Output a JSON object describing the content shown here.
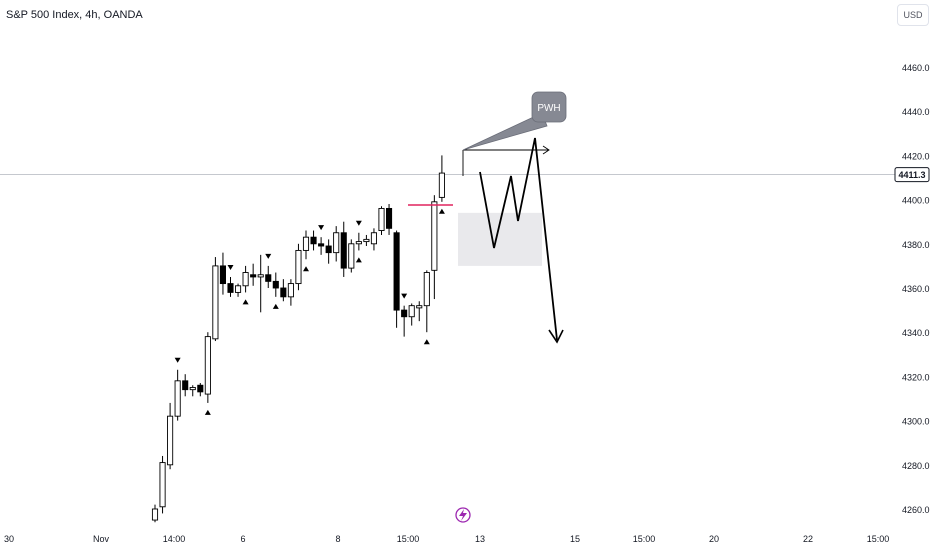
{
  "header": {
    "title": "S&P 500 Index, 4h, OANDA",
    "currency_button": "USD"
  },
  "price_tag": "4411.3",
  "annotation": {
    "label": "PWH"
  },
  "colors": {
    "bull": "#ffffff",
    "bear": "#000000",
    "outline": "#000000",
    "zone": "#e9e9ec",
    "pwh_line": "#e0245e",
    "axis_text": "#131722",
    "lightning": "#9c27b0"
  },
  "chart_data": {
    "type": "candlestick",
    "title": "S&P 500 Index, 4h, OANDA",
    "ylim": [
      4255,
      4480
    ],
    "y_ticks": [
      4260,
      4280,
      4300,
      4320,
      4340,
      4360,
      4380,
      4400,
      4420,
      4440,
      4460
    ],
    "y_tick_labels": [
      "4260.0",
      "4280.0",
      "4300.0",
      "4320.0",
      "4340.0",
      "4360.0",
      "4380.0",
      "4400.0",
      "4420.0",
      "4440.0",
      "4460.0"
    ],
    "x_tick_labels": [
      "30",
      "Nov",
      "14:00",
      "6",
      "8",
      "15:00",
      "13",
      "15",
      "15:00",
      "20",
      "22",
      "15:00"
    ],
    "last_price": 4411.3,
    "candles": [
      {
        "o": 4255,
        "h": 4262,
        "l": 4254,
        "c": 4260
      },
      {
        "o": 4261,
        "h": 4284,
        "l": 4258,
        "c": 4281
      },
      {
        "o": 4280,
        "h": 4308,
        "l": 4278,
        "c": 4302
      },
      {
        "o": 4302,
        "h": 4323,
        "l": 4300,
        "c": 4318
      },
      {
        "o": 4318,
        "h": 4321,
        "l": 4311,
        "c": 4314
      },
      {
        "o": 4314,
        "h": 4316,
        "l": 4311,
        "c": 4315
      },
      {
        "o": 4316,
        "h": 4317,
        "l": 4311,
        "c": 4313
      },
      {
        "o": 4312,
        "h": 4340,
        "l": 4308,
        "c": 4338
      },
      {
        "o": 4337,
        "h": 4374,
        "l": 4336,
        "c": 4370
      },
      {
        "o": 4370,
        "h": 4376,
        "l": 4357,
        "c": 4362
      },
      {
        "o": 4362,
        "h": 4365,
        "l": 4356,
        "c": 4358
      },
      {
        "o": 4358,
        "h": 4362,
        "l": 4356,
        "c": 4361
      },
      {
        "o": 4361,
        "h": 4370,
        "l": 4358,
        "c": 4367
      },
      {
        "o": 4366,
        "h": 4371,
        "l": 4361,
        "c": 4365
      },
      {
        "o": 4365,
        "h": 4375,
        "l": 4349,
        "c": 4366
      },
      {
        "o": 4366,
        "h": 4370,
        "l": 4360,
        "c": 4363
      },
      {
        "o": 4363,
        "h": 4367,
        "l": 4356,
        "c": 4360
      },
      {
        "o": 4360,
        "h": 4364,
        "l": 4354,
        "c": 4356
      },
      {
        "o": 4356,
        "h": 4364,
        "l": 4352,
        "c": 4362
      },
      {
        "o": 4362,
        "h": 4380,
        "l": 4359,
        "c": 4377
      },
      {
        "o": 4377,
        "h": 4386,
        "l": 4373,
        "c": 4383
      },
      {
        "o": 4383,
        "h": 4386,
        "l": 4377,
        "c": 4380
      },
      {
        "o": 4380,
        "h": 4383,
        "l": 4375,
        "c": 4379
      },
      {
        "o": 4379,
        "h": 4382,
        "l": 4371,
        "c": 4376
      },
      {
        "o": 4376,
        "h": 4388,
        "l": 4372,
        "c": 4385
      },
      {
        "o": 4385,
        "h": 4390,
        "l": 4365,
        "c": 4369
      },
      {
        "o": 4369,
        "h": 4382,
        "l": 4367,
        "c": 4380
      },
      {
        "o": 4380,
        "h": 4385,
        "l": 4377,
        "c": 4381
      },
      {
        "o": 4381,
        "h": 4384,
        "l": 4379,
        "c": 4382
      },
      {
        "o": 4380,
        "h": 4387,
        "l": 4377,
        "c": 4385
      },
      {
        "o": 4386,
        "h": 4397,
        "l": 4384,
        "c": 4396
      },
      {
        "o": 4396,
        "h": 4398,
        "l": 4384,
        "c": 4387
      },
      {
        "o": 4385,
        "h": 4386,
        "l": 4342,
        "c": 4350
      },
      {
        "o": 4350,
        "h": 4352,
        "l": 4338,
        "c": 4347
      },
      {
        "o": 4347,
        "h": 4353,
        "l": 4343,
        "c": 4352
      },
      {
        "o": 4351,
        "h": 4354,
        "l": 4345,
        "c": 4352
      },
      {
        "o": 4352,
        "h": 4368,
        "l": 4340,
        "c": 4367
      },
      {
        "o": 4368,
        "h": 4402,
        "l": 4355,
        "c": 4399
      },
      {
        "o": 4401,
        "h": 4420,
        "l": 4399,
        "c": 4412
      }
    ],
    "zone": {
      "top": 4394,
      "bottom": 4370
    },
    "pwh_level": 4399
  }
}
